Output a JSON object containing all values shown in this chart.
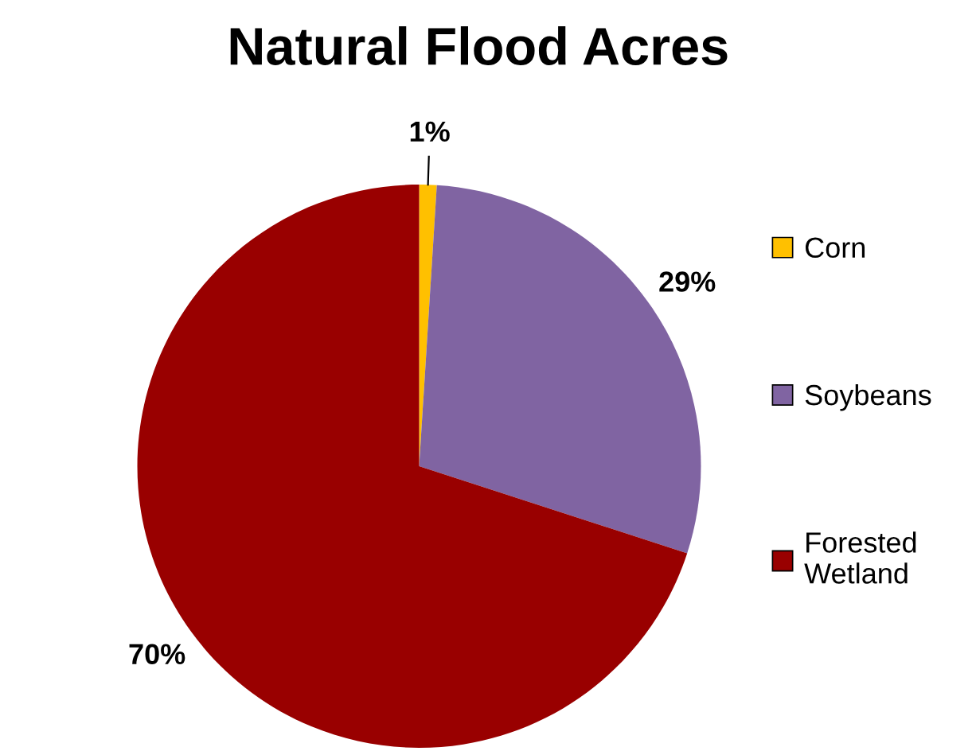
{
  "chart_data": {
    "type": "pie",
    "title": "Natural Flood Acres",
    "categories": [
      "Corn",
      "Soybeans",
      "Forested Wetland"
    ],
    "values": [
      1,
      29,
      70
    ],
    "colors": [
      "#ffc000",
      "#8064a2",
      "#990000"
    ],
    "value_labels": [
      "1%",
      "29%",
      "70%"
    ],
    "legend": "right"
  }
}
